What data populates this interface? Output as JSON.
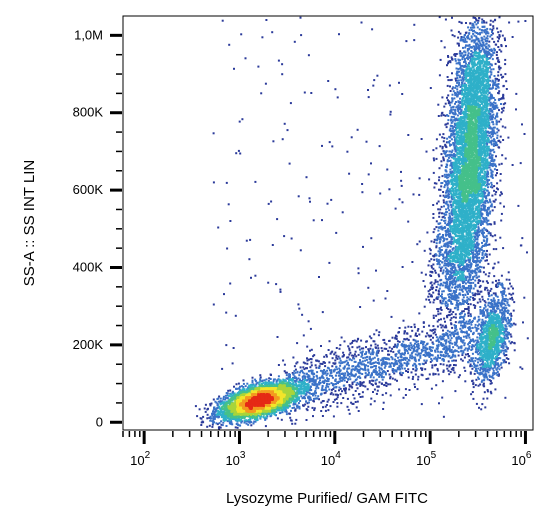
{
  "chart_data": {
    "type": "scatter",
    "style": "density-dot-plot",
    "title": "",
    "xlabel": "Lysozyme Purified/ GAM FITC",
    "ylabel": "SS-A :: SS INT LIN",
    "x_scale": "log",
    "y_scale": "linear",
    "xlim": [
      60,
      1200000
    ],
    "ylim": [
      -20000,
      1050000
    ],
    "x_ticks": [
      {
        "value": 100,
        "base": "10",
        "exp": "2"
      },
      {
        "value": 1000,
        "base": "10",
        "exp": "3"
      },
      {
        "value": 10000,
        "base": "10",
        "exp": "4"
      },
      {
        "value": 100000,
        "base": "10",
        "exp": "5"
      },
      {
        "value": 1000000,
        "base": "10",
        "exp": "6"
      }
    ],
    "y_ticks": [
      {
        "value": 0,
        "label": "0"
      },
      {
        "value": 200000,
        "label": "200K"
      },
      {
        "value": 400000,
        "label": "400K"
      },
      {
        "value": 600000,
        "label": "600K"
      },
      {
        "value": 800000,
        "label": "800K"
      },
      {
        "value": 1000000,
        "label": "1,0M"
      }
    ],
    "grid": false,
    "legend": "none",
    "density_colors": [
      "#2b3a9a",
      "#3a72c8",
      "#2fb0c9",
      "#45c08a",
      "#a9d43a",
      "#f2e52a",
      "#f39a20",
      "#e52a16"
    ],
    "populations": [
      {
        "x_center": 1500,
        "y_center": 55000,
        "count": 4500
      },
      {
        "x_center": 250000,
        "y_center": 650000,
        "count": 6000
      },
      {
        "x_center": 450000,
        "y_center": 220000,
        "count": 1200
      },
      {
        "x_center": 30000,
        "y_center": 150000,
        "count": 1400
      }
    ]
  }
}
